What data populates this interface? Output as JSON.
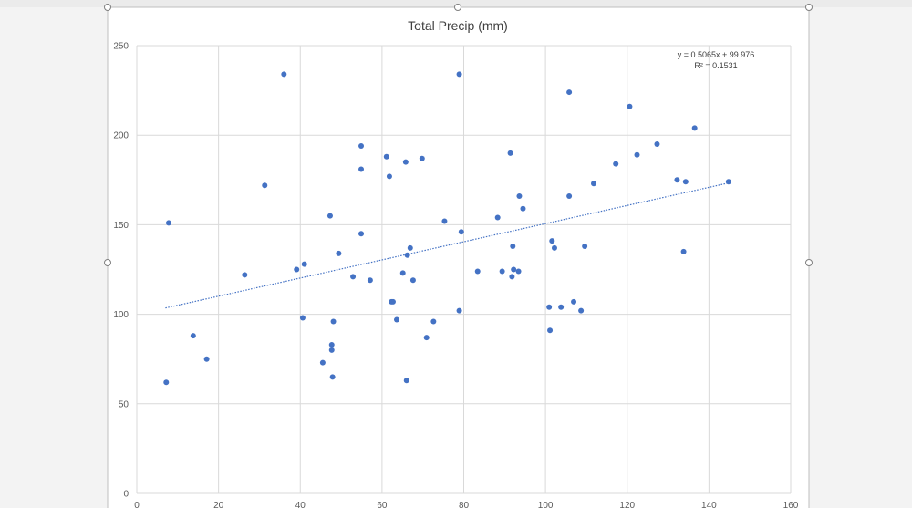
{
  "chart_data": {
    "type": "scatter",
    "title": "Total Precip (mm)",
    "xlabel": "",
    "ylabel": "",
    "xlim": [
      0,
      160
    ],
    "ylim": [
      0,
      250
    ],
    "x_ticks": [
      0,
      20,
      40,
      60,
      80,
      100,
      120,
      140,
      160
    ],
    "y_ticks": [
      0,
      50,
      100,
      150,
      200,
      250
    ],
    "grid": true,
    "marker_color": "#4472c4",
    "trendline": {
      "type": "linear",
      "slope": 0.5065,
      "intercept": 99.976,
      "x_range": [
        7,
        145
      ],
      "equation": "y = 0.5065x + 99.976",
      "r_squared": "R² = 0.1531",
      "color": "#4472c4",
      "style": "dotted"
    },
    "points": [
      {
        "x": 7.2,
        "y": 62
      },
      {
        "x": 7.8,
        "y": 151
      },
      {
        "x": 13.8,
        "y": 88
      },
      {
        "x": 17.1,
        "y": 75
      },
      {
        "x": 26.4,
        "y": 122
      },
      {
        "x": 31.3,
        "y": 172
      },
      {
        "x": 36.0,
        "y": 234
      },
      {
        "x": 39.1,
        "y": 125
      },
      {
        "x": 40.6,
        "y": 98
      },
      {
        "x": 41.0,
        "y": 128
      },
      {
        "x": 45.5,
        "y": 73
      },
      {
        "x": 47.3,
        "y": 155
      },
      {
        "x": 47.7,
        "y": 83
      },
      {
        "x": 47.7,
        "y": 80
      },
      {
        "x": 47.9,
        "y": 65
      },
      {
        "x": 48.1,
        "y": 96
      },
      {
        "x": 49.4,
        "y": 134
      },
      {
        "x": 52.9,
        "y": 121
      },
      {
        "x": 54.9,
        "y": 194
      },
      {
        "x": 54.9,
        "y": 181
      },
      {
        "x": 54.9,
        "y": 145
      },
      {
        "x": 57.1,
        "y": 119
      },
      {
        "x": 61.1,
        "y": 188
      },
      {
        "x": 61.8,
        "y": 177
      },
      {
        "x": 62.3,
        "y": 107
      },
      {
        "x": 62.7,
        "y": 107
      },
      {
        "x": 63.6,
        "y": 97
      },
      {
        "x": 65.1,
        "y": 123
      },
      {
        "x": 65.8,
        "y": 185
      },
      {
        "x": 66.0,
        "y": 63
      },
      {
        "x": 66.2,
        "y": 133
      },
      {
        "x": 66.9,
        "y": 137
      },
      {
        "x": 67.6,
        "y": 119
      },
      {
        "x": 69.8,
        "y": 187
      },
      {
        "x": 70.9,
        "y": 87
      },
      {
        "x": 72.6,
        "y": 96
      },
      {
        "x": 75.3,
        "y": 152
      },
      {
        "x": 78.9,
        "y": 234
      },
      {
        "x": 78.9,
        "y": 102
      },
      {
        "x": 79.4,
        "y": 146
      },
      {
        "x": 83.4,
        "y": 124
      },
      {
        "x": 88.3,
        "y": 154
      },
      {
        "x": 89.4,
        "y": 124
      },
      {
        "x": 91.4,
        "y": 190
      },
      {
        "x": 91.8,
        "y": 121
      },
      {
        "x": 92.0,
        "y": 138
      },
      {
        "x": 92.2,
        "y": 125
      },
      {
        "x": 93.4,
        "y": 124
      },
      {
        "x": 93.6,
        "y": 166
      },
      {
        "x": 94.5,
        "y": 159
      },
      {
        "x": 100.9,
        "y": 104
      },
      {
        "x": 101.1,
        "y": 91
      },
      {
        "x": 101.6,
        "y": 141
      },
      {
        "x": 102.2,
        "y": 137
      },
      {
        "x": 103.8,
        "y": 104
      },
      {
        "x": 105.8,
        "y": 224
      },
      {
        "x": 105.8,
        "y": 166
      },
      {
        "x": 106.9,
        "y": 107
      },
      {
        "x": 108.7,
        "y": 102
      },
      {
        "x": 109.6,
        "y": 138
      },
      {
        "x": 111.8,
        "y": 173
      },
      {
        "x": 117.2,
        "y": 184
      },
      {
        "x": 120.6,
        "y": 216
      },
      {
        "x": 122.4,
        "y": 189
      },
      {
        "x": 127.3,
        "y": 195
      },
      {
        "x": 132.2,
        "y": 175
      },
      {
        "x": 133.8,
        "y": 135
      },
      {
        "x": 134.3,
        "y": 174
      },
      {
        "x": 136.5,
        "y": 204
      },
      {
        "x": 144.8,
        "y": 174
      }
    ]
  }
}
